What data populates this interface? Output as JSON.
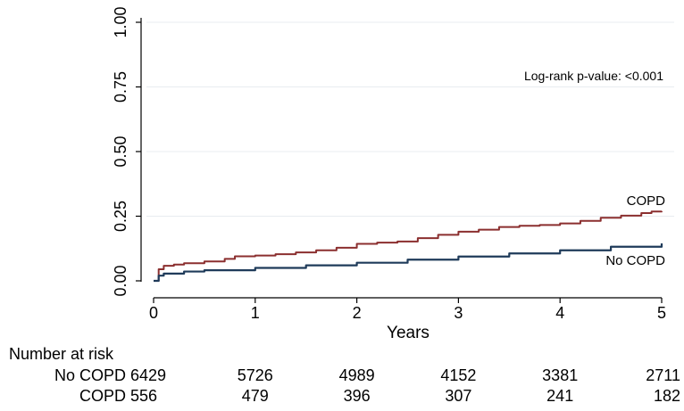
{
  "chart_data": {
    "type": "line",
    "title": "",
    "xlabel": "Years",
    "ylabel": "",
    "xlim": [
      0,
      5
    ],
    "ylim": [
      0,
      1
    ],
    "x_ticks": [
      "0",
      "1",
      "2",
      "3",
      "4",
      "5"
    ],
    "y_ticks": [
      "0.00",
      "0.25",
      "0.50",
      "0.75",
      "1.00"
    ],
    "grid": "horizontal",
    "annotation": "Log-rank p-value: <0.001",
    "series": [
      {
        "name": "COPD",
        "color": "#8b2f2f",
        "points": [
          [
            0,
            0
          ],
          [
            0.05,
            0.045
          ],
          [
            0.1,
            0.058
          ],
          [
            0.2,
            0.063
          ],
          [
            0.3,
            0.068
          ],
          [
            0.5,
            0.075
          ],
          [
            0.7,
            0.085
          ],
          [
            0.8,
            0.095
          ],
          [
            1.0,
            0.098
          ],
          [
            1.2,
            0.103
          ],
          [
            1.4,
            0.11
          ],
          [
            1.6,
            0.118
          ],
          [
            1.8,
            0.128
          ],
          [
            2.0,
            0.143
          ],
          [
            2.2,
            0.148
          ],
          [
            2.4,
            0.152
          ],
          [
            2.6,
            0.165
          ],
          [
            2.8,
            0.178
          ],
          [
            3.0,
            0.19
          ],
          [
            3.2,
            0.198
          ],
          [
            3.4,
            0.208
          ],
          [
            3.6,
            0.213
          ],
          [
            3.8,
            0.216
          ],
          [
            4.0,
            0.222
          ],
          [
            4.2,
            0.232
          ],
          [
            4.4,
            0.244
          ],
          [
            4.6,
            0.252
          ],
          [
            4.8,
            0.262
          ],
          [
            4.9,
            0.268
          ],
          [
            5.0,
            0.27
          ]
        ]
      },
      {
        "name": "No COPD",
        "color": "#1f3b5a",
        "points": [
          [
            0,
            0
          ],
          [
            0.05,
            0.02
          ],
          [
            0.1,
            0.028
          ],
          [
            0.3,
            0.036
          ],
          [
            0.5,
            0.041
          ],
          [
            1.0,
            0.05
          ],
          [
            1.5,
            0.06
          ],
          [
            2.0,
            0.07
          ],
          [
            2.5,
            0.082
          ],
          [
            3.0,
            0.094
          ],
          [
            3.5,
            0.106
          ],
          [
            4.0,
            0.118
          ],
          [
            4.5,
            0.132
          ],
          [
            5.0,
            0.145
          ]
        ]
      }
    ]
  },
  "risk_table": {
    "title": "Number at risk",
    "rows": [
      {
        "label": "No COPD",
        "values": [
          "6429",
          "5726",
          "4989",
          "4152",
          "3381",
          "2711"
        ]
      },
      {
        "label": "COPD",
        "values": [
          "556",
          "479",
          "396",
          "307",
          "241",
          "182"
        ]
      }
    ]
  }
}
